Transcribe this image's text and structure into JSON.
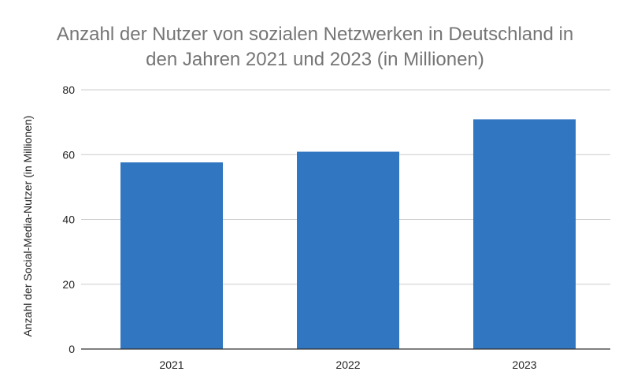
{
  "chart_data": {
    "type": "bar",
    "title_lines": [
      "Anzahl der Nutzer von sozialen Netzwerken in Deutschland in",
      "den Jahren 2021 und 2023 (in Millionen)"
    ],
    "xlabel": "",
    "ylabel": "Anzahl der Social-Media-Nutzer (in Millionen)",
    "categories": [
      "2021",
      "2022",
      "2023"
    ],
    "values": [
      57.6,
      60.9,
      70.9
    ],
    "ylim": [
      0,
      80
    ],
    "yticks": [
      0,
      20,
      40,
      60,
      80
    ],
    "grid": true,
    "legend": "none",
    "bar_color": "#3076c1"
  }
}
